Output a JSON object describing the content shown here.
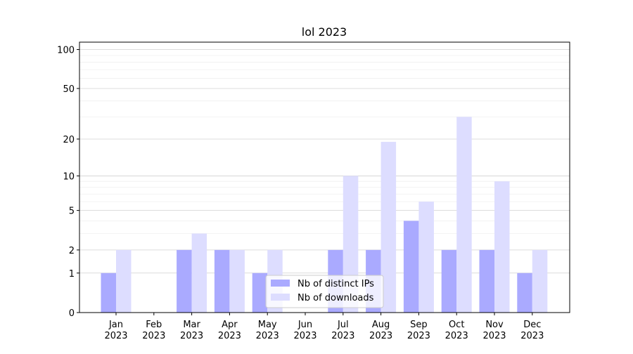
{
  "chart_data": {
    "type": "bar",
    "title": "lol 2023",
    "categories": [
      "Jan\n2023",
      "Feb\n2023",
      "Mar\n2023",
      "Apr\n2023",
      "May\n2023",
      "Jun\n2023",
      "Jul\n2023",
      "Aug\n2023",
      "Sep\n2023",
      "Oct\n2023",
      "Nov\n2023",
      "Dec\n2023"
    ],
    "series": [
      {
        "name": "Nb of distinct IPs",
        "color": "#aaaaff",
        "values": [
          1,
          0,
          2,
          2,
          1,
          0,
          2,
          2,
          4,
          2,
          2,
          1
        ]
      },
      {
        "name": "Nb of downloads",
        "color": "#ddddff",
        "values": [
          2,
          0,
          3,
          2,
          2,
          0,
          10,
          19,
          6,
          30,
          9,
          2
        ]
      }
    ],
    "yscale": "log1p",
    "ylim": [
      0,
      114
    ],
    "yticks": [
      0,
      1,
      2,
      5,
      10,
      20,
      50,
      100
    ],
    "minor_yticks": [
      3,
      4,
      6,
      7,
      8,
      9,
      30,
      40,
      60,
      70,
      80,
      90
    ],
    "grid": true,
    "legend": "lower center"
  }
}
